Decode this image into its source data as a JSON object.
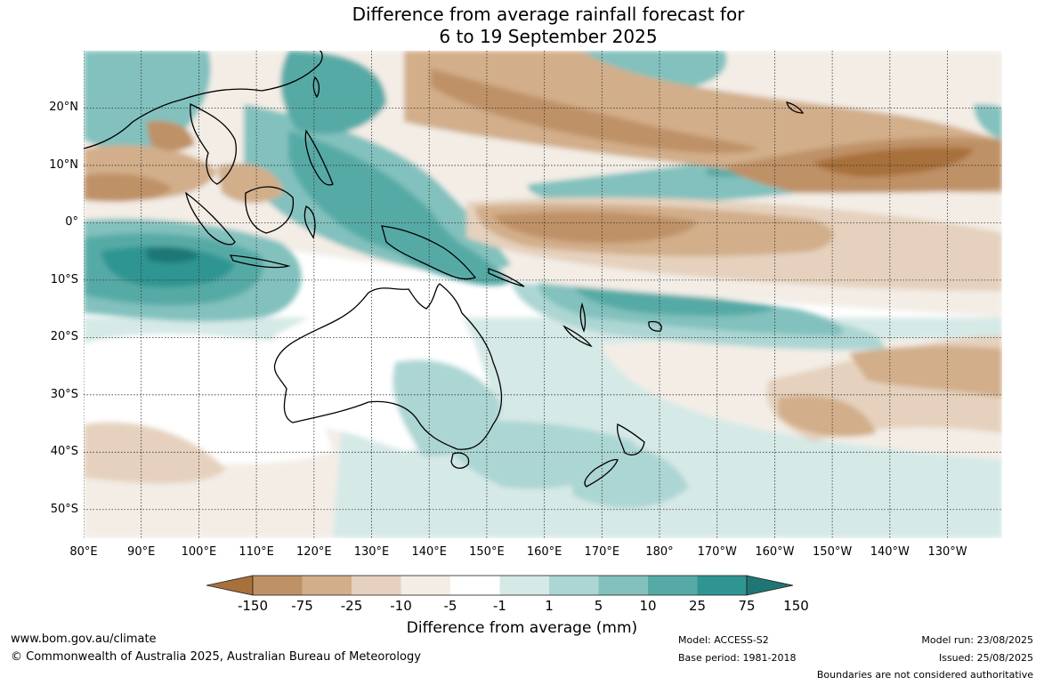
{
  "title": {
    "line1": "Difference from average rainfall forecast for",
    "line2": "6 to 19 September 2025"
  },
  "map": {
    "lat_labels": [
      "20°N",
      "10°N",
      "0°",
      "10°S",
      "20°S",
      "30°S",
      "40°S",
      "50°S"
    ],
    "lat_values": [
      20,
      10,
      0,
      -10,
      -20,
      -30,
      -40,
      -50
    ],
    "lon_labels": [
      "80°E",
      "90°E",
      "100°E",
      "110°E",
      "120°E",
      "130°E",
      "140°E",
      "150°E",
      "160°E",
      "170°E",
      "180°",
      "170°W",
      "160°W",
      "150°W",
      "140°W",
      "130°W"
    ],
    "lon_values": [
      80,
      90,
      100,
      110,
      120,
      130,
      140,
      150,
      160,
      170,
      180,
      190,
      200,
      210,
      220,
      230
    ],
    "extent": {
      "lon_min": 80,
      "lon_max": 239.5,
      "lat_min": -55,
      "lat_max": 30
    }
  },
  "legend": {
    "ticks": [
      "-150",
      "-75",
      "-25",
      "-10",
      "-5",
      "-1",
      "1",
      "5",
      "10",
      "25",
      "75",
      "150"
    ],
    "colors": [
      "#a8703a",
      "#bf9166",
      "#d2ae8a",
      "#e5d1bd",
      "#f3ede6",
      "#ffffff",
      "#d5e9e7",
      "#acd6d3",
      "#82c1bd",
      "#56aaa6",
      "#2f9592",
      "#1f7775"
    ],
    "label": "Difference from average (mm)"
  },
  "footer": {
    "website": "www.bom.gov.au/climate",
    "copyright": "© Commonwealth of Australia 2025, Australian Bureau of Meteorology",
    "model": "Model: ACCESS-S2",
    "base_period": "Base period: 1981-2018",
    "model_run": "Model run: 23/08/2025",
    "issued": "Issued: 25/08/2025",
    "disclaimer": "Boundaries are not considered authoritative"
  }
}
